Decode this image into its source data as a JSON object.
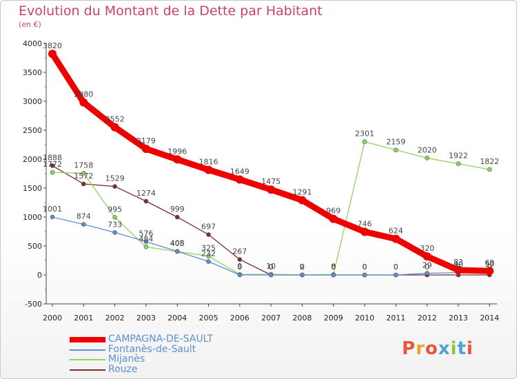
{
  "title": "Evolution du Montant de la Dette par Habitant",
  "subtitle": "(en €)",
  "logo": {
    "text": "Proxiti",
    "colors": [
      "#e8543f",
      "#f0a02a",
      "#e8543f",
      "#4ba3d8",
      "#8cc63f",
      "#4ba3d8",
      "#e8543f"
    ]
  },
  "chart_data": {
    "type": "line",
    "x": [
      "2000",
      "2001",
      "2002",
      "2003",
      "2004",
      "2005",
      "2006",
      "2007",
      "2008",
      "2009",
      "2010",
      "2011",
      "2012",
      "2013",
      "2014"
    ],
    "ylim": [
      -500,
      4000
    ],
    "yticks": [
      -500,
      0,
      500,
      1000,
      1500,
      2000,
      2500,
      3000,
      3500,
      4000
    ],
    "grid": false,
    "legend_position": "bottom-left",
    "series": [
      {
        "name": "CAMPAGNA-DE-SAULT",
        "color": "#ee0000",
        "values": [
          3820,
          2980,
          2552,
          2179,
          1996,
          1816,
          1649,
          1475,
          1291,
          969,
          746,
          624,
          320,
          83,
          69
        ],
        "labels": [
          "3820",
          "2980",
          "2552",
          "2179",
          "1996",
          "1816",
          "1649",
          "1475",
          "1291",
          "969",
          "746",
          "624",
          "320",
          "83",
          "69"
        ]
      },
      {
        "name": "Fontanès-de-Sault",
        "color": "#5b8fd0",
        "values": [
          1001,
          874,
          733,
          576,
          408,
          232,
          0,
          0,
          0,
          0,
          0,
          0,
          29,
          40,
          50
        ],
        "labels": [
          "1001",
          "874",
          "733",
          "576",
          "408",
          "232",
          "0",
          "0",
          "0",
          "0",
          "0",
          "0",
          "29",
          "40",
          "50"
        ]
      },
      {
        "name": "Mijanès",
        "color": "#8fd45a",
        "values": [
          1772,
          1758,
          995,
          484,
          405,
          325,
          9,
          10,
          2,
          8,
          2301,
          2159,
          2020,
          1922,
          1822
        ],
        "labels": [
          "1772",
          "1758",
          "995",
          "484",
          "405",
          "325",
          "9",
          "10",
          "2",
          "8",
          "2301",
          "2159",
          "2020",
          "1922",
          "1822"
        ]
      },
      {
        "name": "Rouze",
        "color": "#7a2e2e",
        "values": [
          1888,
          1572,
          1529,
          1274,
          999,
          697,
          267,
          0,
          0,
          0,
          0,
          0,
          0,
          0,
          0
        ],
        "labels": [
          "1888",
          "1572",
          "1529",
          "1274",
          "999",
          "697",
          "267",
          "0",
          "0",
          "0",
          "0",
          "0",
          "0",
          "0",
          "0"
        ]
      }
    ]
  }
}
